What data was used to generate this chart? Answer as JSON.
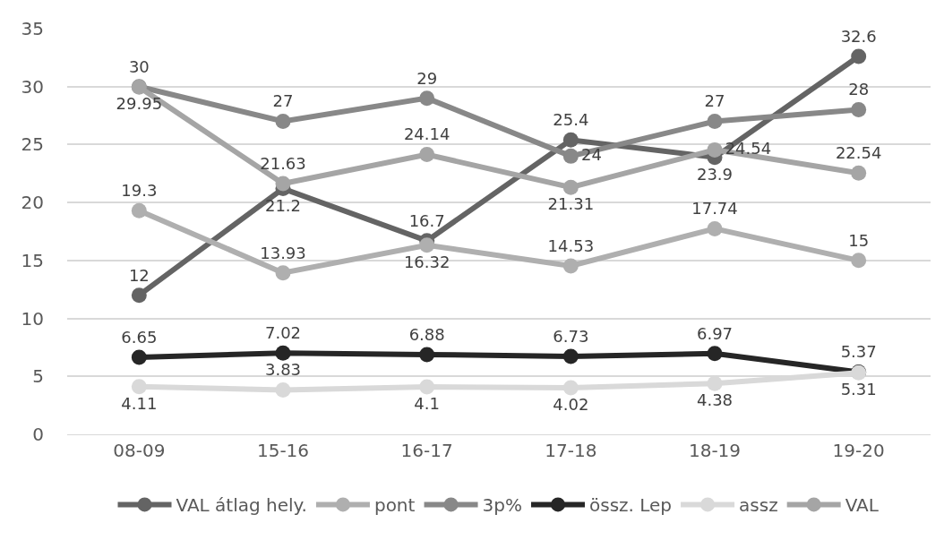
{
  "chart_data": {
    "type": "line",
    "categories": [
      "08-09",
      "15-16",
      "16-17",
      "17-18",
      "18-19",
      "19-20"
    ],
    "series": [
      {
        "name": "VAL átlag hely.",
        "color": "#646464",
        "values": [
          12,
          21.2,
          16.7,
          25.4,
          23.9,
          32.6
        ]
      },
      {
        "name": "pont",
        "color": "#afafaf",
        "values": [
          19.3,
          13.93,
          16.32,
          14.53,
          17.74,
          15
        ]
      },
      {
        "name": "3p%",
        "color": "#888888",
        "values": [
          30,
          27,
          29,
          24,
          27,
          28
        ]
      },
      {
        "name": "össz. Lep",
        "color": "#262626",
        "values": [
          6.65,
          7.02,
          6.88,
          6.73,
          6.97,
          5.37
        ]
      },
      {
        "name": "assz",
        "color": "#d9d9d9",
        "values": [
          4.11,
          3.83,
          4.1,
          4.02,
          4.38,
          5.31
        ]
      },
      {
        "name": "VAL",
        "color": "#a5a5a5",
        "values": [
          29.95,
          21.63,
          24.14,
          21.31,
          24.54,
          22.54
        ]
      }
    ],
    "ylim": [
      0,
      35
    ],
    "yticks": [
      0,
      5,
      10,
      15,
      20,
      25,
      30,
      35
    ],
    "grid": "y",
    "legend": "bottom",
    "marker": "circle",
    "line_style": "solid",
    "data_labels": true
  }
}
